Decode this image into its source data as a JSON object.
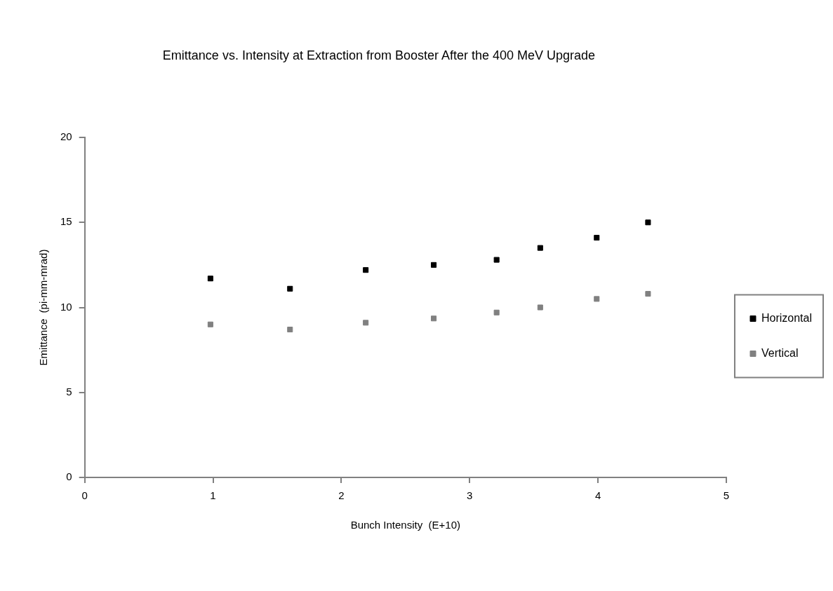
{
  "chart_data": {
    "type": "scatter",
    "title": "Emittance vs. Intensity at Extraction from Booster After the 400 MeV Upgrade",
    "xlabel": "Bunch Intensity  (E+10)",
    "ylabel": "Emittance  (pi-mm-mrad)",
    "xlim": [
      0,
      5
    ],
    "xticks": [
      0,
      1,
      2,
      3,
      4,
      5
    ],
    "ylim": [
      0,
      20
    ],
    "yticks": [
      0,
      5,
      10,
      15,
      20
    ],
    "grid": false,
    "legend": "right",
    "marker": "square",
    "series": [
      {
        "name": "Horizontal",
        "color": "#000000",
        "x": [
          0.98,
          1.6,
          2.19,
          2.72,
          3.21,
          3.55,
          3.99,
          4.39
        ],
        "values": [
          11.7,
          11.1,
          12.2,
          12.5,
          12.8,
          13.5,
          14.1,
          15.0
        ]
      },
      {
        "name": "Vertical",
        "color": "#808080",
        "x": [
          0.98,
          1.6,
          2.19,
          2.72,
          3.21,
          3.55,
          3.99,
          4.39
        ],
        "values": [
          9.0,
          8.7,
          9.1,
          9.35,
          9.7,
          10.0,
          10.5,
          10.8
        ]
      }
    ]
  }
}
